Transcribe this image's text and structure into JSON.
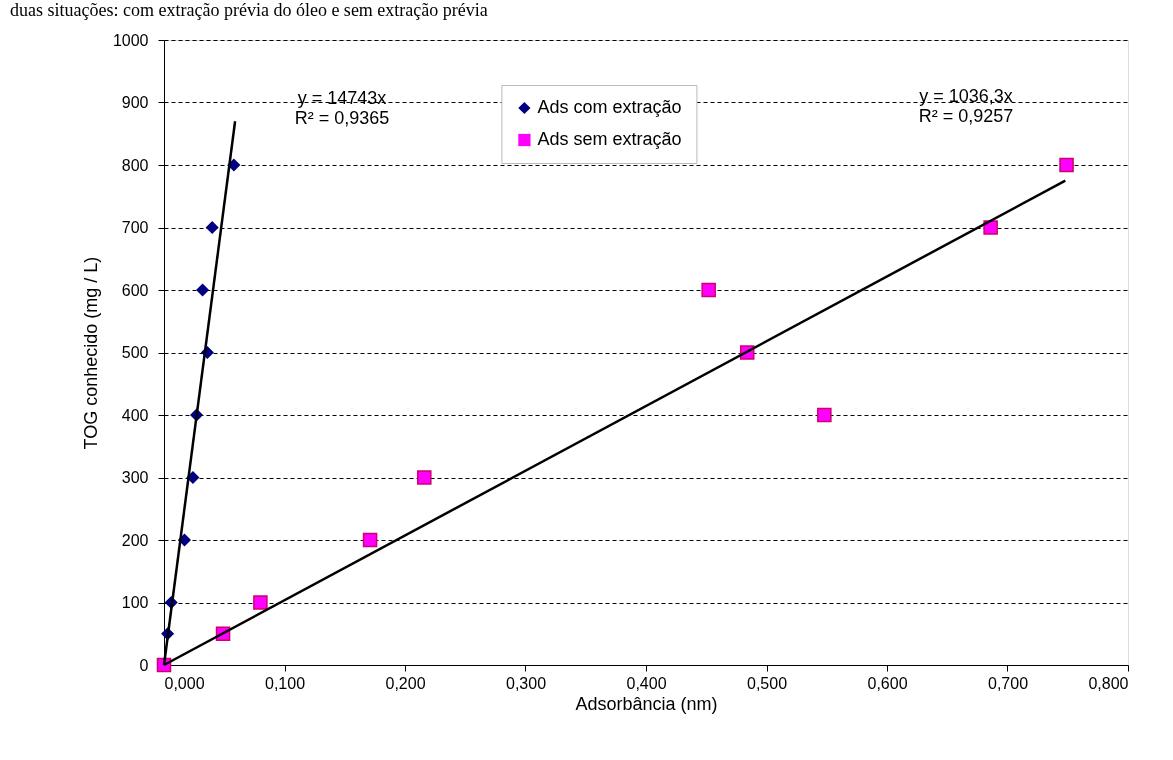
{
  "chart_data": {
    "type": "scatter",
    "title": "duas situações: com extração prévia do óleo e sem extração prévia",
    "xlabel": "Adsorbância (nm)",
    "ylabel": "TOG conhecido (mg / L)",
    "series": [
      {
        "name": "Ads com extração",
        "color": "#000080",
        "marker": "diamond",
        "x": [
          0.003,
          0.006,
          0.017,
          0.024,
          0.027,
          0.036,
          0.032,
          0.04,
          0.058
        ],
        "values": [
          50,
          100,
          200,
          300,
          400,
          500,
          600,
          700,
          800
        ]
      },
      {
        "name": "Ads sem extração",
        "color": "#ff00ff",
        "marker": "square",
        "x": [
          0,
          0.049,
          0.08,
          0.171,
          0.216,
          0.452,
          0.484,
          0.548,
          0.686,
          0.749
        ],
        "values": [
          0,
          50,
          100,
          200,
          300,
          600,
          500,
          400,
          700,
          800
        ]
      },
      {
        "type": "line",
        "color": "#000000",
        "marker": "none",
        "x": [
          0,
          0.059
        ],
        "values": [
          0,
          870
        ]
      },
      {
        "type": "line",
        "color": "#000000",
        "marker": "none",
        "x": [
          0,
          0.748
        ],
        "values": [
          0,
          775
        ]
      }
    ],
    "annotations": [
      "y = 14743x\nR² = 0,9365",
      "y = 1036,3x\nR² = 0,9257"
    ],
    "xlim": [
      0,
      0.8
    ],
    "xticks": [
      {
        "value": 0,
        "label": "0,000"
      },
      {
        "value": 0.1,
        "label": "0,100"
      },
      {
        "value": 0.2,
        "label": "0,200"
      },
      {
        "value": 0.3,
        "label": "0,300"
      },
      {
        "value": 0.4,
        "label": "0,400"
      },
      {
        "value": 0.5,
        "label": "0,500"
      },
      {
        "value": 0.6,
        "label": "0,600"
      },
      {
        "value": 0.7,
        "label": "0,700"
      },
      {
        "value": 0.8,
        "label": "0,800"
      }
    ],
    "ylim": [
      0,
      1000
    ],
    "yticks": [
      0,
      100,
      200,
      300,
      400,
      500,
      600,
      700,
      800,
      900,
      1000
    ],
    "grid": "y",
    "legend": "top",
    "line_style": "solid"
  }
}
